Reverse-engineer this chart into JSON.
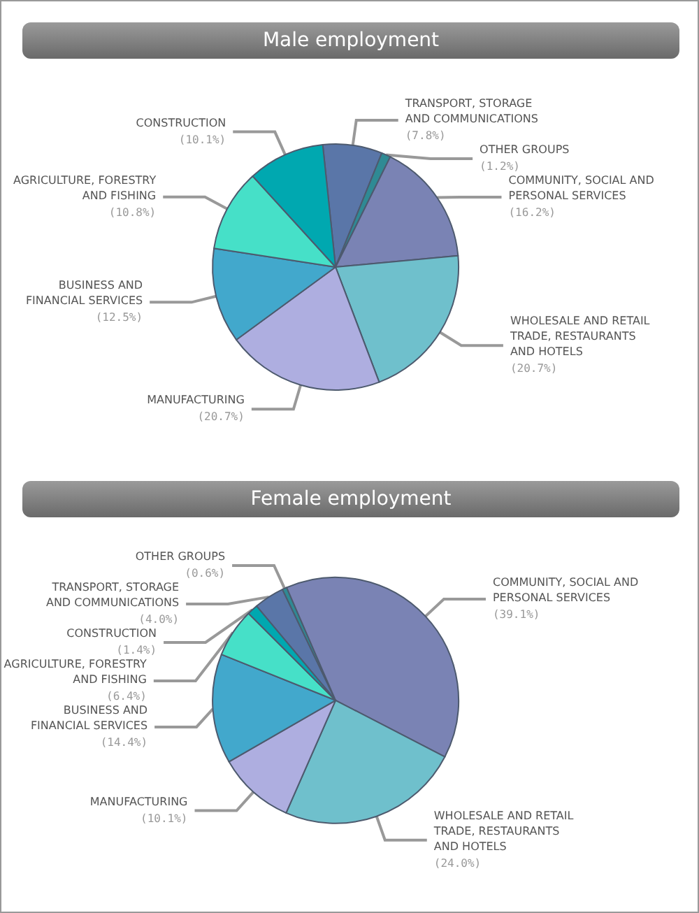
{
  "chart_data": [
    {
      "type": "pie",
      "title": "Male employment",
      "categories": [
        "TRANSPORT, STORAGE AND COMMUNICATIONS",
        "OTHER GROUPS",
        "COMMUNITY, SOCIAL AND PERSONAL SERVICES",
        "WHOLESALE AND RETAIL TRADE, RESTAURANTS AND HOTELS",
        "MANUFACTURING",
        "BUSINESS AND FINANCIAL SERVICES",
        "AGRICULTURE, FORESTRY AND FISHING",
        "CONSTRUCTION"
      ],
      "values": [
        7.8,
        1.2,
        16.2,
        20.7,
        20.7,
        12.5,
        10.8,
        10.1
      ],
      "value_labels": [
        "(7.8%)",
        "(1.2%)",
        "(16.2%)",
        "(20.7%)",
        "(20.7%)",
        "(12.5%)",
        "(10.8%)",
        "(10.1%)"
      ],
      "colors": [
        "#5a76a8",
        "#2f8a94",
        "#7a83b4",
        "#6fc0cc",
        "#aeaee0",
        "#42a8cc",
        "#46e0c8",
        "#00a8b0"
      ]
    },
    {
      "type": "pie",
      "title": "Female employment",
      "categories": [
        "TRANSPORT, STORAGE AND COMMUNICATIONS",
        "OTHER GROUPS",
        "COMMUNITY, SOCIAL AND PERSONAL SERVICES",
        "WHOLESALE AND RETAIL TRADE, RESTAURANTS AND HOTELS",
        "MANUFACTURING",
        "BUSINESS AND FINANCIAL SERVICES",
        "AGRICULTURE, FORESTRY AND FISHING",
        "CONSTRUCTION"
      ],
      "values": [
        4.0,
        0.6,
        39.1,
        24.0,
        10.1,
        14.4,
        6.4,
        1.4
      ],
      "value_labels": [
        "(4.0%)",
        "(0.6%)",
        "(39.1%)",
        "(24.0%)",
        "(10.1%)",
        "(14.4%)",
        "(6.4%)",
        "(1.4%)"
      ],
      "colors": [
        "#5a76a8",
        "#2f8a94",
        "#7a83b4",
        "#6fc0cc",
        "#aeaee0",
        "#42a8cc",
        "#46e0c8",
        "#00a8b0"
      ]
    }
  ]
}
